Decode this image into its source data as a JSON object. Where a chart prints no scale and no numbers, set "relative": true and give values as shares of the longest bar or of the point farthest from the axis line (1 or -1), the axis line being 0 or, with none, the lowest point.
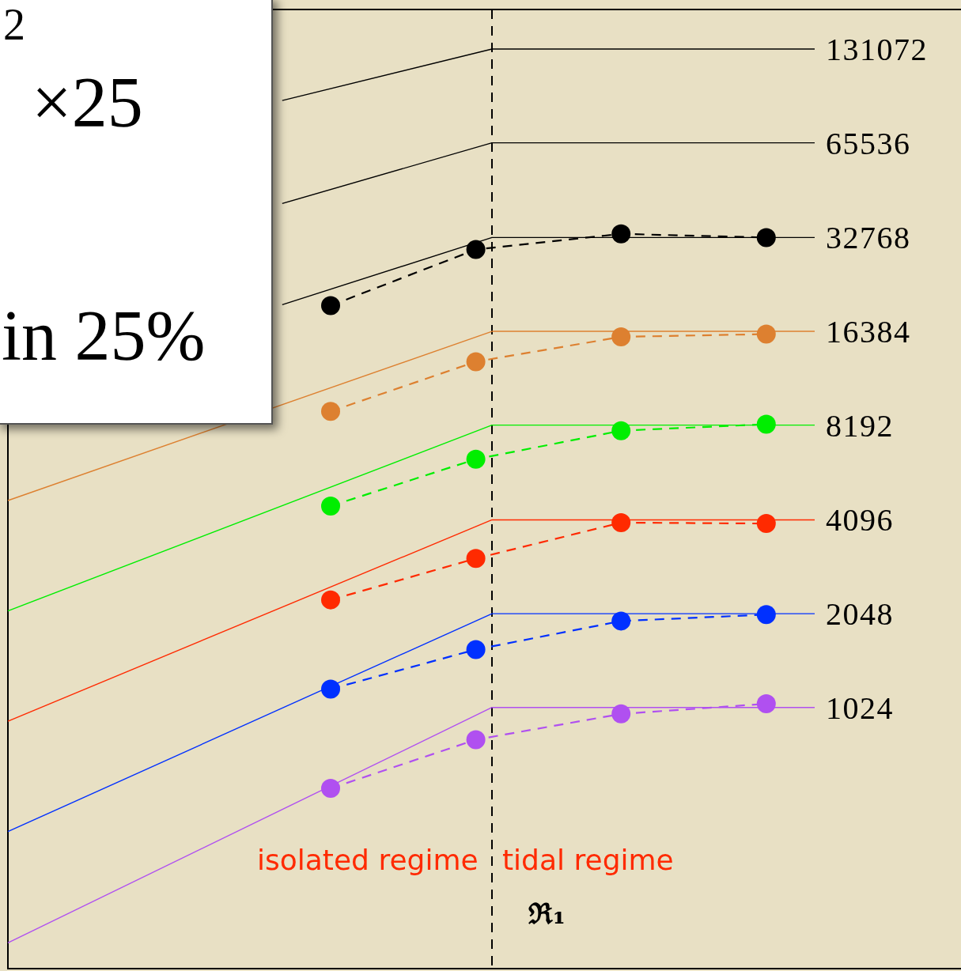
{
  "chart_data": {
    "type": "line",
    "relative": true,
    "legend": "right",
    "categories": [
      null,
      null,
      null,
      null,
      null,
      null,
      null,
      null,
      null,
      null,
      null,
      null,
      null,
      null,
      null,
      null,
      null,
      null,
      null,
      null,
      null,
      null,
      null,
      null,
      null,
      null,
      null,
      null,
      null,
      null,
      null,
      null,
      null,
      null,
      null,
      null,
      null,
      null,
      null,
      null,
      null,
      null,
      null,
      null,
      null,
      null,
      null,
      null,
      null,
      null,
      null
    ],
    "series": [
      {
        "name": "131072",
        "color": "#000000",
        "marker": "none",
        "line_style": "solid",
        "values": [
          null,
          null,
          null,
          null,
          null,
          null,
          null,
          null,
          null,
          null,
          null,
          null,
          null,
          null,
          null,
          null,
          null,
          0.944,
          null,
          null,
          null,
          null,
          null,
          null,
          null,
          null,
          null,
          null,
          null,
          null,
          1,
          null,
          null,
          null,
          null,
          null,
          null,
          null,
          null,
          null,
          null,
          null,
          null,
          null,
          null,
          null,
          null,
          null,
          null,
          null,
          1
        ]
      },
      {
        "name": "65536",
        "color": "#000000",
        "marker": "none",
        "line_style": "solid",
        "values": [
          null,
          null,
          null,
          null,
          null,
          null,
          null,
          null,
          null,
          null,
          null,
          null,
          null,
          null,
          null,
          null,
          null,
          0.832,
          null,
          null,
          null,
          null,
          null,
          null,
          null,
          null,
          null,
          null,
          null,
          null,
          0.898,
          null,
          null,
          null,
          null,
          null,
          null,
          null,
          null,
          null,
          null,
          null,
          null,
          null,
          null,
          null,
          null,
          null,
          null,
          null,
          0.898
        ]
      },
      {
        "name": "32768",
        "color": "#000000",
        "marker": "none",
        "line_style": "solid",
        "values": [
          null,
          null,
          null,
          null,
          null,
          null,
          null,
          null,
          null,
          null,
          null,
          null,
          null,
          null,
          null,
          null,
          null,
          0.722,
          null,
          null,
          null,
          null,
          null,
          null,
          null,
          null,
          null,
          null,
          null,
          null,
          0.795,
          null,
          null,
          null,
          null,
          null,
          null,
          null,
          null,
          null,
          null,
          null,
          null,
          null,
          null,
          null,
          null,
          null,
          null,
          null,
          0.795
        ]
      },
      {
        "name": "16384",
        "color": "#dd8030",
        "marker": "none",
        "line_style": "solid",
        "values": [
          0.509,
          null,
          null,
          null,
          null,
          null,
          null,
          null,
          null,
          null,
          null,
          null,
          null,
          null,
          null,
          null,
          null,
          null,
          null,
          null,
          null,
          null,
          null,
          null,
          null,
          null,
          null,
          null,
          null,
          null,
          0.693,
          null,
          null,
          null,
          null,
          null,
          null,
          null,
          null,
          null,
          null,
          null,
          null,
          null,
          null,
          null,
          null,
          null,
          null,
          null,
          0.693
        ]
      },
      {
        "name": "8192",
        "color": "#00ee00",
        "marker": "none",
        "line_style": "solid",
        "values": [
          0.389,
          null,
          null,
          null,
          null,
          null,
          null,
          null,
          null,
          null,
          null,
          null,
          null,
          null,
          null,
          null,
          null,
          null,
          null,
          null,
          null,
          null,
          null,
          null,
          null,
          null,
          null,
          null,
          null,
          null,
          0.591,
          null,
          null,
          null,
          null,
          null,
          null,
          null,
          null,
          null,
          null,
          null,
          null,
          null,
          null,
          null,
          null,
          null,
          null,
          null,
          0.591
        ]
      },
      {
        "name": "4096",
        "color": "#ff2a00",
        "marker": "none",
        "line_style": "solid",
        "values": [
          0.269,
          null,
          null,
          null,
          null,
          null,
          null,
          null,
          null,
          null,
          null,
          null,
          null,
          null,
          null,
          null,
          null,
          null,
          null,
          null,
          null,
          null,
          null,
          null,
          null,
          null,
          null,
          null,
          null,
          null,
          0.488,
          null,
          null,
          null,
          null,
          null,
          null,
          null,
          null,
          null,
          null,
          null,
          null,
          null,
          null,
          null,
          null,
          null,
          null,
          null,
          0.488
        ]
      },
      {
        "name": "2048",
        "color": "#0030ff",
        "marker": "none",
        "line_style": "solid",
        "values": [
          0.149,
          null,
          null,
          null,
          null,
          null,
          null,
          null,
          null,
          null,
          null,
          null,
          null,
          null,
          null,
          null,
          null,
          null,
          null,
          null,
          null,
          null,
          null,
          null,
          null,
          null,
          null,
          null,
          null,
          null,
          0.386,
          null,
          null,
          null,
          null,
          null,
          null,
          null,
          null,
          null,
          null,
          null,
          null,
          null,
          null,
          null,
          null,
          null,
          null,
          null,
          0.386
        ]
      },
      {
        "name": "1024",
        "color": "#b050f0",
        "marker": "none",
        "line_style": "solid",
        "values": [
          0.028,
          null,
          null,
          null,
          null,
          null,
          null,
          null,
          null,
          null,
          null,
          null,
          null,
          null,
          null,
          null,
          null,
          null,
          null,
          null,
          null,
          null,
          null,
          null,
          null,
          null,
          null,
          null,
          null,
          null,
          0.284,
          null,
          null,
          null,
          null,
          null,
          null,
          null,
          null,
          null,
          null,
          null,
          null,
          null,
          null,
          null,
          null,
          null,
          null,
          null,
          0.284
        ]
      },
      {
        "color": "#000000",
        "marker": "circle",
        "line_style": "dashed",
        "values": [
          null,
          null,
          null,
          null,
          null,
          null,
          null,
          null,
          null,
          null,
          null,
          null,
          null,
          null,
          null,
          null,
          null,
          null,
          null,
          null,
          0.721,
          null,
          null,
          null,
          null,
          null,
          null,
          null,
          null,
          0.782,
          null,
          null,
          null,
          null,
          null,
          null,
          null,
          null,
          0.799,
          null,
          null,
          null,
          null,
          null,
          null,
          null,
          null,
          0.795,
          null,
          null,
          null
        ]
      },
      {
        "color": "#dd8030",
        "marker": "circle",
        "line_style": "dashed",
        "values": [
          null,
          null,
          null,
          null,
          null,
          null,
          null,
          null,
          null,
          null,
          null,
          null,
          null,
          null,
          null,
          null,
          null,
          null,
          null,
          null,
          0.606,
          null,
          null,
          null,
          null,
          null,
          null,
          null,
          null,
          0.66,
          null,
          null,
          null,
          null,
          null,
          null,
          null,
          null,
          0.687,
          null,
          null,
          null,
          null,
          null,
          null,
          null,
          null,
          0.69,
          null,
          null,
          null
        ]
      },
      {
        "color": "#00ee00",
        "marker": "circle",
        "line_style": "dashed",
        "values": [
          null,
          null,
          null,
          null,
          null,
          null,
          null,
          null,
          null,
          null,
          null,
          null,
          null,
          null,
          null,
          null,
          null,
          null,
          null,
          null,
          0.503,
          null,
          null,
          null,
          null,
          null,
          null,
          null,
          null,
          0.554,
          null,
          null,
          null,
          null,
          null,
          null,
          null,
          null,
          0.585,
          null,
          null,
          null,
          null,
          null,
          null,
          null,
          null,
          0.592,
          null,
          null,
          null
        ]
      },
      {
        "color": "#ff2a00",
        "marker": "circle",
        "line_style": "dashed",
        "values": [
          null,
          null,
          null,
          null,
          null,
          null,
          null,
          null,
          null,
          null,
          null,
          null,
          null,
          null,
          null,
          null,
          null,
          null,
          null,
          null,
          0.401,
          null,
          null,
          null,
          null,
          null,
          null,
          null,
          null,
          0.446,
          null,
          null,
          null,
          null,
          null,
          null,
          null,
          null,
          0.485,
          null,
          null,
          null,
          null,
          null,
          null,
          null,
          null,
          0.484,
          null,
          null,
          null
        ]
      },
      {
        "color": "#0030ff",
        "marker": "circle",
        "line_style": "dashed",
        "values": [
          null,
          null,
          null,
          null,
          null,
          null,
          null,
          null,
          null,
          null,
          null,
          null,
          null,
          null,
          null,
          null,
          null,
          null,
          null,
          null,
          0.304,
          null,
          null,
          null,
          null,
          null,
          null,
          null,
          null,
          0.347,
          null,
          null,
          null,
          null,
          null,
          null,
          null,
          null,
          0.378,
          null,
          null,
          null,
          null,
          null,
          null,
          null,
          null,
          0.385,
          null,
          null,
          null
        ]
      },
      {
        "color": "#b050f0",
        "marker": "circle",
        "line_style": "dashed",
        "values": [
          null,
          null,
          null,
          null,
          null,
          null,
          null,
          null,
          null,
          null,
          null,
          null,
          null,
          null,
          null,
          null,
          null,
          null,
          null,
          null,
          0.196,
          null,
          null,
          null,
          null,
          null,
          null,
          null,
          null,
          0.249,
          null,
          null,
          null,
          null,
          null,
          null,
          null,
          null,
          0.277,
          null,
          null,
          null,
          null,
          null,
          null,
          null,
          null,
          0.288,
          null,
          null,
          null
        ]
      }
    ],
    "annotations": [
      "2",
      "×25",
      "in 25%",
      "isolated regime",
      "tidal regime",
      "ℜ₁"
    ]
  }
}
